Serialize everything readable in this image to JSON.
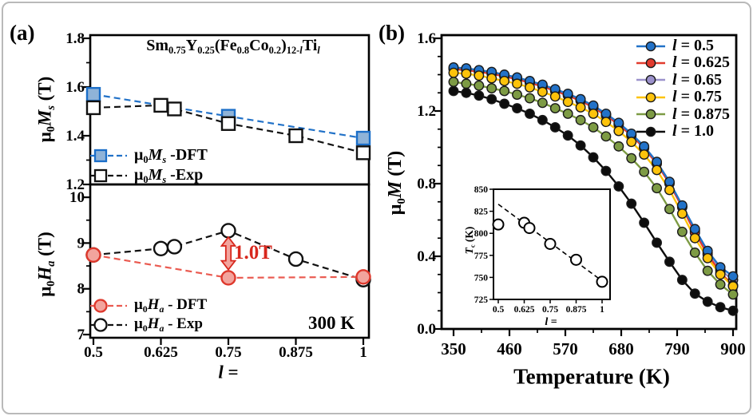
{
  "panel_labels": {
    "a": "(a)",
    "b": "(b)"
  },
  "chart_data": [
    {
      "id": "a-top",
      "type": "line",
      "title_segments": [
        {
          "t": "Sm"
        },
        {
          "t": "0.75",
          "sub": true
        },
        {
          "t": "Y"
        },
        {
          "t": "0.25",
          "sub": true
        },
        {
          "t": "(Fe"
        },
        {
          "t": "0.8",
          "sub": true
        },
        {
          "t": "Co"
        },
        {
          "t": "0.2",
          "sub": true
        },
        {
          "t": ")"
        },
        {
          "t": "12-",
          "sub": true
        },
        {
          "t": "l",
          "sub": true,
          "i": true
        },
        {
          "t": "Ti"
        },
        {
          "t": "l",
          "sub": true,
          "i": true
        }
      ],
      "ylabel_segments": [
        {
          "t": "μ"
        },
        {
          "t": "0",
          "sub": true
        },
        {
          "t": "M",
          "i": true
        },
        {
          "t": "s",
          "sub": true,
          "i": true
        },
        {
          "t": " (T)"
        }
      ],
      "xlim": [
        0.5,
        1.0
      ],
      "ylim": [
        1.2,
        1.8
      ],
      "ytick_labels": [
        "1.2",
        "1.4",
        "1.6",
        "1.8"
      ],
      "ytick_values": [
        1.2,
        1.4,
        1.6,
        1.8
      ],
      "grid": false,
      "legend_position": "lower-left",
      "legend_order": [
        0,
        1
      ],
      "series": [
        {
          "name": "μ0Ms -DFT",
          "label_segments": [
            {
              "t": "μ"
            },
            {
              "t": "0",
              "sub": true
            },
            {
              "t": "M",
              "i": true
            },
            {
              "t": "s",
              "sub": true,
              "i": true
            },
            {
              "t": " -DFT"
            }
          ],
          "marker": "square",
          "dash": true,
          "marker_fill": "#8fb3d8",
          "marker_stroke": "#1b6ec8",
          "line_color": "#2272c8",
          "x": [
            0.5,
            0.75,
            1.0
          ],
          "y": [
            1.57,
            1.48,
            1.39
          ]
        },
        {
          "name": "μ0Ms -Exp",
          "label_segments": [
            {
              "t": "μ"
            },
            {
              "t": "0",
              "sub": true
            },
            {
              "t": "M",
              "i": true
            },
            {
              "t": "s",
              "sub": true,
              "i": true
            },
            {
              "t": " -Exp"
            }
          ],
          "marker": "square",
          "dash": true,
          "marker_fill": "#ffffff",
          "marker_stroke": "#111111",
          "line_color": "#111111",
          "x": [
            0.5,
            0.625,
            0.65,
            0.75,
            0.875,
            1.0
          ],
          "y": [
            1.515,
            1.525,
            1.51,
            1.45,
            1.4,
            1.33
          ]
        }
      ]
    },
    {
      "id": "a-bottom",
      "type": "line",
      "ylabel_segments": [
        {
          "t": "μ"
        },
        {
          "t": "0",
          "sub": true
        },
        {
          "t": "H",
          "i": true
        },
        {
          "t": "a",
          "sub": true,
          "i": true
        },
        {
          "t": " (T)"
        }
      ],
      "xlabel_segments": [
        {
          "t": "l",
          "i": true
        },
        {
          "t": " ="
        }
      ],
      "xlim": [
        0.5,
        1.0
      ],
      "ylim": [
        7,
        10
      ],
      "ytick_labels": [
        "7",
        "8",
        "9",
        "10"
      ],
      "ytick_values": [
        7,
        8,
        9,
        10
      ],
      "xtick_labels": [
        "0.5",
        "0.625",
        "0.75",
        "0.875",
        "1"
      ],
      "xtick_values": [
        0.5,
        0.625,
        0.75,
        0.875,
        1.0
      ],
      "corner_text": "300 K",
      "annotation": {
        "text": "1.0T",
        "color": "#d8271d",
        "x": 0.75,
        "y_top": 9.13,
        "y_bottom": 8.42
      },
      "legend_order": [
        1,
        0
      ],
      "series": [
        {
          "name": "μ0Ha - Exp",
          "label_segments": [
            {
              "t": "μ"
            },
            {
              "t": "0",
              "sub": true
            },
            {
              "t": "H",
              "i": true
            },
            {
              "t": "a",
              "sub": true,
              "i": true
            },
            {
              "t": " - Exp"
            }
          ],
          "marker": "circle",
          "dash": true,
          "marker_fill": "#ffffff",
          "marker_stroke": "#111111",
          "line_color": "#111111",
          "x": [
            0.5,
            0.625,
            0.65,
            0.75,
            0.875,
            1.0
          ],
          "y": [
            8.74,
            8.88,
            8.92,
            9.27,
            8.65,
            8.2
          ]
        },
        {
          "name": "μ0Ha - DFT",
          "label_segments": [
            {
              "t": "μ"
            },
            {
              "t": "0",
              "sub": true
            },
            {
              "t": "H",
              "i": true
            },
            {
              "t": "a",
              "sub": true,
              "i": true
            },
            {
              "t": " - DFT"
            }
          ],
          "marker": "circle",
          "dash": true,
          "marker_fill": "#f2a49d",
          "marker_stroke": "#de382c",
          "line_color": "#ea5a50",
          "x": [
            0.5,
            0.75,
            1.0
          ],
          "y": [
            8.74,
            8.24,
            8.26
          ]
        }
      ]
    },
    {
      "id": "b-main",
      "type": "line",
      "ylabel_segments": [
        {
          "t": "μ"
        },
        {
          "t": "0",
          "sub": true
        },
        {
          "t": "M",
          "i": true
        },
        {
          "t": " (T)"
        }
      ],
      "xlabel_segments": [
        {
          "t": "Temperature (K)"
        }
      ],
      "xlim": [
        350,
        900
      ],
      "ylim": [
        0.0,
        1.6
      ],
      "ytick_labels": [
        "0.0",
        "0.4",
        "0.8",
        "1.2",
        "1.6"
      ],
      "ytick_values": [
        0.0,
        0.4,
        0.8,
        1.2,
        1.6
      ],
      "xtick_labels": [
        "350",
        "460",
        "570",
        "680",
        "790",
        "900"
      ],
      "xtick_values": [
        350,
        460,
        570,
        680,
        790,
        900
      ],
      "legend_position": "upper-right",
      "temperatures": [
        350,
        375,
        400,
        425,
        450,
        475,
        500,
        525,
        550,
        575,
        600,
        625,
        650,
        675,
        700,
        725,
        750,
        775,
        800,
        825,
        850,
        875,
        900
      ],
      "series": [
        {
          "name": "l = 0.5",
          "label_segments": [
            {
              "t": "l",
              "i": true
            },
            {
              "t": " = 0.5"
            }
          ],
          "color": "#2272c8",
          "values": [
            1.44,
            1.435,
            1.425,
            1.415,
            1.4,
            1.385,
            1.365,
            1.345,
            1.32,
            1.295,
            1.265,
            1.23,
            1.185,
            1.135,
            1.075,
            1.005,
            0.92,
            0.81,
            0.68,
            0.55,
            0.43,
            0.34,
            0.29
          ]
        },
        {
          "name": "l = 0.625",
          "label_segments": [
            {
              "t": "l",
              "i": true
            },
            {
              "t": " = 0.625"
            }
          ],
          "color": "#e23b2e",
          "values": [
            1.43,
            1.425,
            1.415,
            1.405,
            1.39,
            1.375,
            1.355,
            1.335,
            1.31,
            1.285,
            1.255,
            1.22,
            1.175,
            1.125,
            1.065,
            0.995,
            0.91,
            0.8,
            0.67,
            0.53,
            0.41,
            0.31,
            0.24
          ]
        },
        {
          "name": "l = 0.65",
          "label_segments": [
            {
              "t": "l",
              "i": true
            },
            {
              "t": " = 0.65"
            }
          ],
          "color": "#9c92cc",
          "values": [
            1.435,
            1.43,
            1.42,
            1.41,
            1.395,
            1.38,
            1.36,
            1.34,
            1.315,
            1.29,
            1.26,
            1.225,
            1.18,
            1.13,
            1.07,
            1.0,
            0.915,
            0.805,
            0.675,
            0.54,
            0.42,
            0.325,
            0.27
          ]
        },
        {
          "name": "l = 0.75",
          "label_segments": [
            {
              "t": "l",
              "i": true
            },
            {
              "t": " = 0.75"
            }
          ],
          "color": "#fdc30b",
          "values": [
            1.41,
            1.405,
            1.395,
            1.38,
            1.365,
            1.35,
            1.33,
            1.305,
            1.28,
            1.25,
            1.22,
            1.185,
            1.14,
            1.09,
            1.03,
            0.96,
            0.875,
            0.765,
            0.635,
            0.5,
            0.39,
            0.3,
            0.235
          ]
        },
        {
          "name": "l = 0.875",
          "label_segments": [
            {
              "t": "l",
              "i": true
            },
            {
              "t": " = 0.875"
            }
          ],
          "color": "#7d9b44",
          "values": [
            1.36,
            1.35,
            1.34,
            1.325,
            1.31,
            1.29,
            1.27,
            1.245,
            1.215,
            1.185,
            1.15,
            1.11,
            1.06,
            1.005,
            0.94,
            0.865,
            0.775,
            0.66,
            0.535,
            0.42,
            0.32,
            0.245,
            0.19
          ]
        },
        {
          "name": "l = 1.0",
          "label_segments": [
            {
              "t": "l",
              "i": true
            },
            {
              "t": " = 1.0"
            }
          ],
          "color": "#0d0d0d",
          "values": [
            1.31,
            1.3,
            1.285,
            1.265,
            1.24,
            1.215,
            1.185,
            1.15,
            1.11,
            1.065,
            1.01,
            0.945,
            0.87,
            0.785,
            0.69,
            0.585,
            0.475,
            0.37,
            0.27,
            0.195,
            0.15,
            0.12,
            0.1
          ]
        }
      ]
    },
    {
      "id": "b-inset",
      "type": "scatter",
      "ylabel_segments": [
        {
          "t": "T",
          "i": true
        },
        {
          "t": "c",
          "sub": true
        },
        {
          "t": " (K)"
        }
      ],
      "xlabel_segments": [
        {
          "t": "l",
          "i": true
        },
        {
          "t": " ="
        }
      ],
      "xlim": [
        0.5,
        1.0
      ],
      "ylim": [
        725,
        850
      ],
      "ytick_labels": [
        "725",
        "750",
        "775",
        "800",
        "825",
        "850"
      ],
      "ytick_values": [
        725,
        750,
        775,
        800,
        825,
        850
      ],
      "xtick_labels": [
        "0.5",
        "0.625",
        "0.75",
        "0.875",
        "1"
      ],
      "xtick_values": [
        0.5,
        0.625,
        0.75,
        0.875,
        1.0
      ],
      "x": [
        0.5,
        0.625,
        0.65,
        0.75,
        0.875,
        1.0
      ],
      "tc": [
        810,
        812,
        806,
        788,
        770,
        745
      ],
      "trend_line": {
        "x": [
          0.5,
          1.0
        ],
        "y": [
          833,
          746
        ]
      }
    }
  ]
}
